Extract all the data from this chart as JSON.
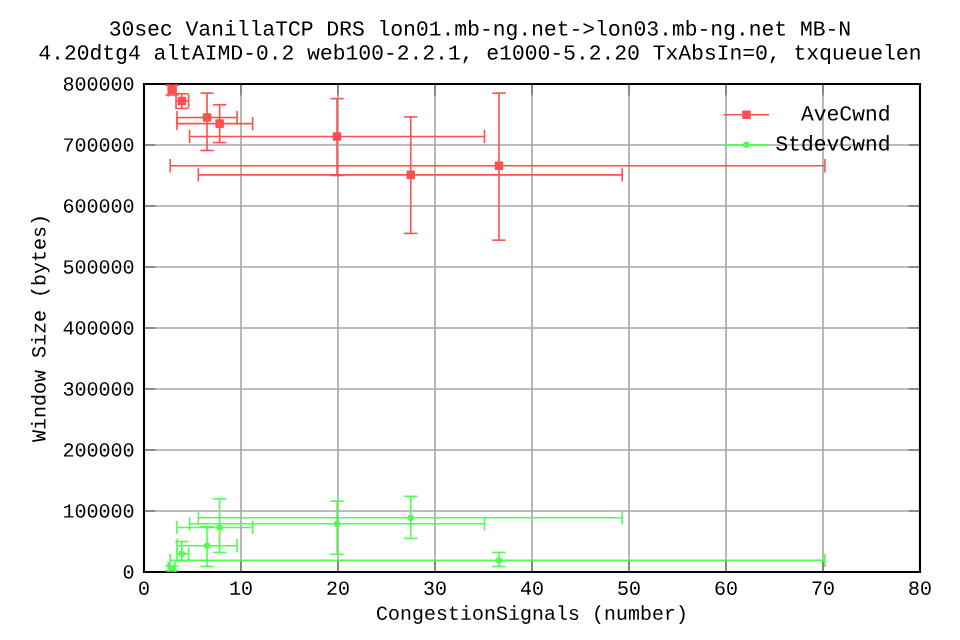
{
  "chart_data": {
    "type": "scatter",
    "title": "30sec VanillaTCP DRS lon01.mb-ng.net->lon03.mb-ng.net MB-N",
    "subtitle": "4.20dtg4 altAIMD-0.2 web100-2.2.1, e1000-5.2.20 TxAbsIn=0, txqueuelen",
    "xlabel": "CongestionSignals (number)",
    "ylabel": "Window Size (bytes)",
    "xlim": [
      0,
      80
    ],
    "ylim": [
      0,
      800000
    ],
    "xticks": [
      0,
      10,
      20,
      30,
      40,
      50,
      60,
      70,
      80
    ],
    "yticks": [
      0,
      100000,
      200000,
      300000,
      400000,
      500000,
      600000,
      700000,
      800000
    ],
    "grid": true,
    "legend": "top right",
    "line_style": "solid",
    "series": [
      {
        "name": "AveCwnd",
        "color": "#ff5050",
        "marker": "square",
        "x": [
          36.6,
          27.5,
          19.9,
          7.8,
          6.5,
          2.9,
          3.9
        ],
        "values": [
          666000,
          651000,
          714000,
          735000,
          745000,
          790000,
          772000
        ],
        "errors": [
          [
            544000,
            785000
          ],
          [
            555000,
            746000
          ],
          [
            650000,
            776000
          ],
          [
            704000,
            766000
          ],
          [
            691000,
            785000
          ],
          [
            782000,
            798000
          ],
          [
            760000,
            784000
          ]
        ],
        "xerrors": [
          [
            2.7,
            70.2
          ],
          [
            5.6,
            49.3
          ],
          [
            4.7,
            35.1
          ],
          [
            3.4,
            11.2
          ],
          [
            3.4,
            9.6
          ],
          [
            2.5,
            3.3
          ],
          [
            3.3,
            4.6
          ]
        ]
      },
      {
        "name": "StdevCwnd",
        "color": "#50ff50",
        "marker": "circle",
        "x": [
          36.6,
          27.5,
          19.9,
          7.8,
          6.5,
          2.9,
          3.9
        ],
        "values": [
          19000,
          89000,
          79000,
          73000,
          43000,
          6000,
          30000
        ],
        "errors": [
          [
            9000,
            32000
          ],
          [
            55000,
            124000
          ],
          [
            29000,
            116000
          ],
          [
            32000,
            120000
          ],
          [
            9000,
            74000
          ],
          [
            2000,
            10000
          ],
          [
            18000,
            50000
          ]
        ],
        "xerrors": [
          [
            2.7,
            70.2
          ],
          [
            5.6,
            49.3
          ],
          [
            4.7,
            35.1
          ],
          [
            3.4,
            11.2
          ],
          [
            3.4,
            9.6
          ],
          [
            2.5,
            3.2
          ],
          [
            3.4,
            4.6
          ]
        ]
      }
    ]
  }
}
